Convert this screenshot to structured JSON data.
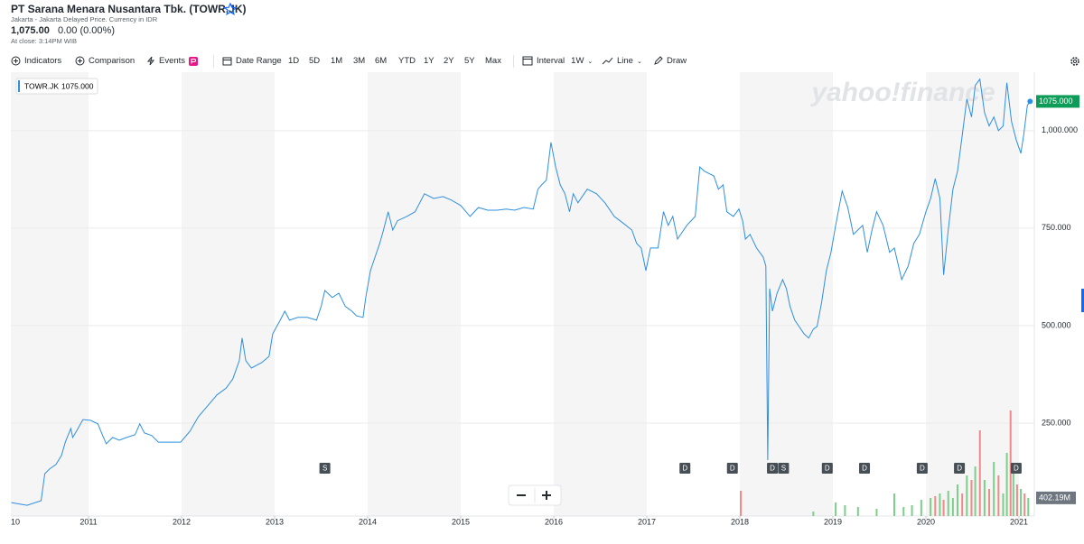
{
  "header": {
    "title": "PT Sarana Menara Nusantara Tbk. (TOWR.JK)",
    "exchange": "Jakarta - Jakarta Delayed Price. Currency in IDR",
    "price": "1,075.00",
    "change": "0.00 (0.00%)",
    "close_time": "At close: 3:14PM WIB"
  },
  "toolbar": {
    "indicators": "Indicators",
    "comparison": "Comparison",
    "events": "Events",
    "date_range": "Date Range",
    "ranges": [
      "1D",
      "5D",
      "1M",
      "3M",
      "6M",
      "YTD",
      "1Y",
      "2Y",
      "5Y",
      "Max"
    ],
    "interval": "Interval",
    "interval_value": "1W",
    "chart_style": "Line",
    "draw": "Draw"
  },
  "chart_data": {
    "type": "line",
    "watermark": "yahoo!finance",
    "grid": true,
    "shade_alternate_years": true,
    "x": [
      2010.17,
      2010.34,
      2010.49,
      2010.53,
      2010.58,
      2010.65,
      2010.71,
      2010.75,
      2010.81,
      2010.83,
      2010.87,
      2010.94,
      2011.02,
      2011.1,
      2011.14,
      2011.19,
      2011.26,
      2011.33,
      2011.41,
      2011.5,
      2011.55,
      2011.6,
      2011.68,
      2011.75,
      2011.89,
      2011.99,
      2012.09,
      2012.18,
      2012.28,
      2012.38,
      2012.48,
      2012.55,
      2012.62,
      2012.65,
      2012.69,
      2012.75,
      2012.86,
      2012.94,
      2012.98,
      2013.06,
      2013.11,
      2013.16,
      2013.25,
      2013.35,
      2013.45,
      2013.5,
      2013.54,
      2013.62,
      2013.69,
      2013.76,
      2013.83,
      2013.88,
      2013.95,
      2013.98,
      2014.03,
      2014.08,
      2014.13,
      2014.17,
      2014.22,
      2014.27,
      2014.32,
      2014.42,
      2014.51,
      2014.56,
      2014.61,
      2014.71,
      2014.81,
      2014.9,
      2015.0,
      2015.1,
      2015.19,
      2015.29,
      2015.39,
      2015.49,
      2015.58,
      2015.68,
      2015.78,
      2015.83,
      2015.87,
      2015.92,
      2015.97,
      2016.02,
      2016.07,
      2016.12,
      2016.17,
      2016.21,
      2016.26,
      2016.36,
      2016.46,
      2016.55,
      2016.65,
      2016.75,
      2016.84,
      2016.89,
      2016.94,
      2016.99,
      2017.04,
      2017.12,
      2017.18,
      2017.23,
      2017.28,
      2017.33,
      2017.43,
      2017.52,
      2017.57,
      2017.62,
      2017.72,
      2017.77,
      2017.82,
      2017.86,
      2017.93,
      2017.99,
      2018.03,
      2018.06,
      2018.11,
      2018.18,
      2018.25,
      2018.28,
      2018.3,
      2018.32,
      2018.35,
      2018.4,
      2018.46,
      2018.5,
      2018.54,
      2018.59,
      2018.69,
      2018.74,
      2018.79,
      2018.83,
      2018.88,
      2018.93,
      2018.98,
      2019.03,
      2019.1,
      2019.16,
      2019.22,
      2019.32,
      2019.37,
      2019.42,
      2019.47,
      2019.54,
      2019.61,
      2019.66,
      2019.74,
      2019.81,
      2019.87,
      2019.93,
      2020.0,
      2020.05,
      2020.1,
      2020.15,
      2020.19,
      2020.24,
      2020.29,
      2020.34,
      2020.39,
      2020.44,
      2020.49,
      2020.53,
      2020.58,
      2020.63,
      2020.68,
      2020.73,
      2020.78,
      2020.83,
      2020.87,
      2020.92,
      2020.97,
      2021.02,
      2021.05,
      2021.09,
      2021.12
    ],
    "series": [
      {
        "name": "TOWR.JK",
        "color": "#2f8fe0",
        "last_label": "1075.000",
        "values": [
          46,
          39,
          51,
          120,
          132,
          144,
          167,
          201,
          236,
          213,
          229,
          259,
          257,
          248,
          225,
          197,
          213,
          206,
          213,
          220,
          248,
          225,
          218,
          201,
          201,
          201,
          229,
          266,
          294,
          322,
          340,
          363,
          410,
          468,
          410,
          391,
          405,
          421,
          479,
          514,
          537,
          514,
          521,
          521,
          514,
          549,
          590,
          572,
          583,
          549,
          537,
          525,
          521,
          572,
          641,
          676,
          711,
          745,
          792,
          745,
          769,
          780,
          792,
          815,
          838,
          826,
          831,
          822,
          808,
          780,
          803,
          796,
          796,
          799,
          796,
          803,
          799,
          850,
          861,
          873,
          970,
          907,
          861,
          838,
          792,
          838,
          815,
          850,
          838,
          815,
          780,
          762,
          745,
          711,
          699,
          641,
          699,
          699,
          792,
          757,
          780,
          722,
          757,
          780,
          907,
          896,
          884,
          850,
          861,
          792,
          780,
          799,
          769,
          722,
          734,
          699,
          676,
          653,
          155,
          595,
          537,
          583,
          618,
          595,
          549,
          514,
          479,
          468,
          491,
          498,
          560,
          641,
          688,
          757,
          845,
          803,
          734,
          757,
          688,
          745,
          792,
          757,
          688,
          699,
          618,
          653,
          711,
          734,
          792,
          826,
          877,
          826,
          630,
          745,
          850,
          896,
          988,
          1081,
          1035,
          1116,
          1132,
          1046,
          1012,
          1035,
          1000,
          1012,
          1123,
          1023,
          977,
          942,
          988,
          1065,
          1075
        ]
      }
    ],
    "xlim": [
      2010.165,
      2021.165
    ],
    "xticks": [
      {
        "value": 2010,
        "label": "10"
      },
      2011,
      2012,
      2013,
      2014,
      2015,
      2016,
      2017,
      2018,
      2019,
      2020,
      2021
    ],
    "ylim": [
      0,
      1150
    ],
    "yticks": [
      {
        "value": 250,
        "label": "250.000"
      },
      {
        "value": 500,
        "label": "500.000"
      },
      {
        "value": 750,
        "label": "750.000"
      },
      {
        "value": 1000,
        "label": "1,000.000"
      }
    ],
    "volume": {
      "x": [
        2018.01,
        2018.79,
        2019.03,
        2019.13,
        2019.27,
        2019.47,
        2019.66,
        2019.76,
        2019.85,
        2019.95,
        2020.05,
        2020.1,
        2020.15,
        2020.19,
        2020.24,
        2020.29,
        2020.34,
        2020.39,
        2020.44,
        2020.49,
        2020.53,
        2020.58,
        2020.63,
        2020.68,
        2020.73,
        2020.78,
        2020.83,
        2020.87,
        2020.91,
        2020.94,
        2020.98,
        2021.02,
        2021.06,
        2021.1
      ],
      "values": [
        560,
        100,
        300,
        240,
        200,
        160,
        500,
        200,
        240,
        360,
        400,
        440,
        500,
        360,
        560,
        400,
        700,
        500,
        900,
        800,
        1100,
        1900,
        800,
        600,
        1200,
        900,
        500,
        1400,
        2340,
        1000,
        700,
        600,
        500,
        402.19
      ],
      "colors": [
        "#ef8a8a",
        "#7ccf8a",
        "#7ccf8a",
        "#7ccf8a",
        "#7ccf8a",
        "#7ccf8a",
        "#7ccf8a",
        "#7ccf8a",
        "#7ccf8a",
        "#7ccf8a",
        "#7ccf8a",
        "#ef8a8a",
        "#7ccf8a",
        "#ef8a8a",
        "#7ccf8a",
        "#7ccf8a",
        "#7ccf8a",
        "#ef8a8a",
        "#7ccf8a",
        "#ef8a8a",
        "#7ccf8a",
        "#ef8a8a",
        "#7ccf8a",
        "#ef8a8a",
        "#7ccf8a",
        "#ef8a8a",
        "#7ccf8a",
        "#7ccf8a",
        "#ef8a8a",
        "#7ccf8a",
        "#ef8a8a",
        "#7ccf8a",
        "#ef8a8a",
        "#7ccf8a"
      ],
      "ylim": [
        0,
        2500
      ],
      "last_label": "402.19M"
    },
    "events": [
      {
        "x": 2013.54,
        "label": "S"
      },
      {
        "x": 2017.41,
        "label": "D"
      },
      {
        "x": 2017.92,
        "label": "D"
      },
      {
        "x": 2018.35,
        "label": "D"
      },
      {
        "x": 2018.47,
        "label": "S"
      },
      {
        "x": 2018.94,
        "label": "D"
      },
      {
        "x": 2019.34,
        "label": "D"
      },
      {
        "x": 2019.96,
        "label": "D"
      },
      {
        "x": 2020.36,
        "label": "D"
      },
      {
        "x": 2020.97,
        "label": "D"
      }
    ]
  }
}
